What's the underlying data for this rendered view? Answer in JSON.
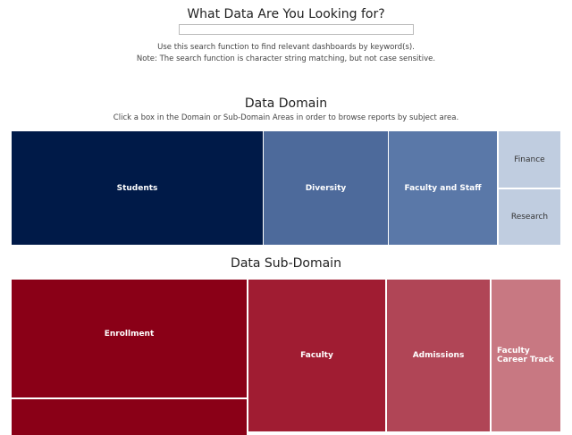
{
  "search": {
    "title": "What Data Are You Looking for?",
    "value": "",
    "note1": "Use this search function to find relevant dashboards by keyword(s).",
    "note2": "Note: The search function is character string matching, but not case sensitive."
  },
  "domain": {
    "title": "Data Domain",
    "subtitle": "Click a box in the Domain or Sub-Domain Areas in order to browse reports by subject area.",
    "items": [
      {
        "label": "Students",
        "color": "#001a48"
      },
      {
        "label": "Diversity",
        "color": "#4d6a9b"
      },
      {
        "label": "Faculty and Staff",
        "color": "#5a78a8"
      },
      {
        "label": "Finance",
        "color": "#c0cde0"
      },
      {
        "label": "Research",
        "color": "#c0cde0"
      }
    ]
  },
  "subdomain": {
    "title": "Data Sub-Domain",
    "items": [
      {
        "label": "Enrollment",
        "color": "#8a0017"
      },
      {
        "label": "",
        "color": "#8a0017"
      },
      {
        "label": "Faculty",
        "color": "#a01c32"
      },
      {
        "label": "Admissions",
        "color": "#b04556"
      },
      {
        "label": "Faculty Career Track",
        "color": "#c87882"
      }
    ]
  }
}
